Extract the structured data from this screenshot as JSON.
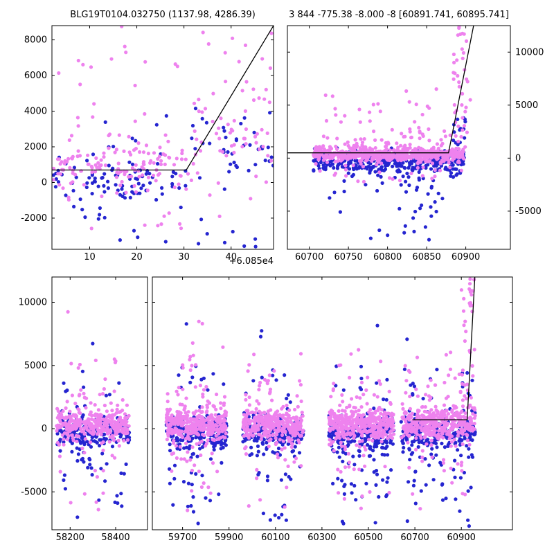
{
  "titles": {
    "left": "BLG19T0104.032750 (1137.98, 4286.39)",
    "right": "3 844 -775.38 -8.000 -8 [60891.741, 60895.741]"
  },
  "offset_label": "+6.085e4",
  "style": {
    "background": "#ffffff",
    "frame_color": "#000000",
    "text_color": "#000000",
    "line_color": "#000000",
    "violet": "#ee82ee",
    "blue": "#2525d0",
    "marker_radius": 2.6,
    "tick_length": 4,
    "font_size": 13,
    "seed": 424243
  },
  "chart_data": [
    {
      "id": "top-left",
      "type": "scatter",
      "title": "BLG19T0104.032750 (1137.98, 4286.39)",
      "rect": {
        "l": 75,
        "t": 37,
        "r": 395,
        "b": 360
      },
      "x": {
        "min": 2,
        "max": 49,
        "ticks": [
          10,
          20,
          30,
          40
        ],
        "show_labels": true,
        "offset": "+6.085e4"
      },
      "y": {
        "min": -3750,
        "max": 8800,
        "ticks": [
          -2000,
          0,
          2000,
          4000,
          6000,
          8000
        ],
        "label_side": "left"
      },
      "model_line": [
        [
          2,
          700
        ],
        [
          30.5,
          700
        ],
        [
          49,
          8800
        ]
      ],
      "series": [
        {
          "name": "blue",
          "blobs": [
            [
              2,
              31,
              100,
              550,
              85,
              "n"
            ],
            [
              31,
              49,
              1900,
              1100,
              40,
              "n"
            ],
            [
              5,
              30,
              -3500,
              -800,
              12,
              "u"
            ],
            [
              31,
              46,
              -3600,
              -1000,
              8,
              "u"
            ],
            [
              10,
              30,
              1500,
              3800,
              8,
              "u"
            ]
          ]
        },
        {
          "name": "violet",
          "blobs": [
            [
              2,
              31,
              850,
              650,
              130,
              "n"
            ],
            [
              31,
              49,
              2300,
              1500,
              55,
              "n"
            ],
            [
              3,
              30,
              2500,
              7800,
              22,
              "u"
            ],
            [
              33,
              49,
              4500,
              8900,
              14,
              "u"
            ],
            [
              14,
              18,
              8400,
              8800,
              1,
              "u"
            ],
            [
              4,
              30,
              -2600,
              -500,
              10,
              "u"
            ]
          ]
        }
      ]
    },
    {
      "id": "top-right",
      "type": "scatter",
      "title": "3 844 -775.38 -8.000 -8 [60891.741, 60895.741]",
      "rect": {
        "l": 415,
        "t": 37,
        "r": 737,
        "b": 360
      },
      "x": {
        "min": 60672,
        "max": 60957,
        "ticks": [
          60700,
          60750,
          60800,
          60850,
          60900
        ],
        "show_labels": true
      },
      "y": {
        "min": -8600,
        "max": 12500,
        "ticks": [
          -5000,
          0,
          5000,
          10000
        ],
        "label_side": "right"
      },
      "model_line": [
        [
          60672,
          500
        ],
        [
          60878,
          500
        ],
        [
          60910,
          12500
        ]
      ],
      "series": [
        {
          "name": "blue",
          "blobs": [
            [
              60705,
              60898,
              -350,
              550,
              330,
              "n"
            ],
            [
              60715,
              60890,
              -5200,
              -900,
              45,
              "u"
            ],
            [
              60760,
              60870,
              -7800,
              -4500,
              12,
              "u"
            ],
            [
              60884,
              60902,
              300,
              3900,
              18,
              "u"
            ]
          ]
        },
        {
          "name": "violet",
          "blobs": [
            [
              60705,
              60898,
              350,
              300,
              520,
              "n"
            ],
            [
              60705,
              60898,
              600,
              900,
              120,
              "n"
            ],
            [
              60715,
              60870,
              2000,
              6600,
              30,
              "u"
            ],
            [
              60884,
              60906,
              800,
              12400,
              40,
              "u"
            ],
            [
              60715,
              60890,
              -2500,
              -600,
              15,
              "u"
            ]
          ]
        }
      ]
    },
    {
      "id": "bottom-left",
      "type": "scatter",
      "title": "",
      "rect": {
        "l": 75,
        "t": 400,
        "r": 213,
        "b": 765
      },
      "x": {
        "min": 58120,
        "max": 58540,
        "ticks": [
          58200,
          58400
        ],
        "show_labels": true
      },
      "y": {
        "min": -8000,
        "max": 12000,
        "ticks": [
          -5000,
          0,
          5000,
          10000
        ],
        "label_side": "left"
      },
      "model_line": null,
      "series": [
        {
          "name": "blue",
          "blobs": [
            [
              58140,
              58460,
              -250,
              600,
              200,
              "n"
            ],
            [
              58150,
              58450,
              -4200,
              -900,
              25,
              "u"
            ],
            [
              58170,
              58430,
              -7200,
              -4400,
              8,
              "u"
            ],
            [
              58150,
              58450,
              1200,
              4600,
              10,
              "u"
            ],
            [
              58280,
              58310,
              6400,
              6800,
              1,
              "u"
            ]
          ]
        },
        {
          "name": "violet",
          "blobs": [
            [
              58140,
              58460,
              300,
              550,
              260,
              "n"
            ],
            [
              58140,
              58460,
              400,
              1200,
              60,
              "n"
            ],
            [
              58150,
              58450,
              2200,
              5500,
              16,
              "u"
            ],
            [
              58190,
              58215,
              8800,
              9400,
              1,
              "u"
            ],
            [
              58150,
              58450,
              -3500,
              -900,
              14,
              "u"
            ],
            [
              58180,
              58420,
              -6500,
              -3800,
              6,
              "u"
            ]
          ]
        }
      ]
    },
    {
      "id": "bottom-right",
      "type": "scatter",
      "title": "",
      "rect": {
        "l": 220,
        "t": 400,
        "r": 740,
        "b": 765
      },
      "x": {
        "min": 59570,
        "max": 61120,
        "ticks": [
          59700,
          59900,
          60100,
          60300,
          60500,
          60700,
          60900
        ],
        "show_labels": true
      },
      "y": {
        "min": -8000,
        "max": 12000,
        "ticks": [
          -5000,
          0,
          5000,
          10000
        ],
        "label_side": "none"
      },
      "model_line": [
        [
          60690,
          700
        ],
        [
          60925,
          700
        ],
        [
          60958,
          12000
        ]
      ],
      "series": [
        {
          "name": "blue",
          "blobs": [
            [
              59630,
              59890,
              -250,
              650,
              200,
              "n"
            ],
            [
              59640,
              59880,
              -4500,
              -1000,
              28,
              "u"
            ],
            [
              59650,
              59870,
              -7600,
              -4600,
              9,
              "u"
            ],
            [
              59640,
              59880,
              1500,
              5000,
              12,
              "u"
            ],
            [
              59705,
              59722,
              8200,
              8500,
              1,
              "u"
            ],
            [
              59960,
              60220,
              -250,
              650,
              200,
              "n"
            ],
            [
              59970,
              60210,
              -4300,
              -1000,
              26,
              "u"
            ],
            [
              59980,
              60200,
              -7500,
              -4500,
              8,
              "u"
            ],
            [
              59970,
              60210,
              1400,
              4800,
              10,
              "u"
            ],
            [
              60030,
              60060,
              7000,
              8300,
              2,
              "u"
            ],
            [
              60330,
              60610,
              -300,
              700,
              230,
              "n"
            ],
            [
              60340,
              60600,
              -4600,
              -1000,
              32,
              "u"
            ],
            [
              60350,
              60590,
              -7800,
              -4700,
              10,
              "u"
            ],
            [
              60340,
              60600,
              1500,
              5200,
              12,
              "u"
            ],
            [
              60538,
              60560,
              8100,
              8400,
              1,
              "u"
            ],
            [
              60640,
              60960,
              -300,
              700,
              220,
              "n"
            ],
            [
              60650,
              60950,
              -4700,
              -1100,
              30,
              "u"
            ],
            [
              60660,
              60940,
              -7800,
              -4800,
              10,
              "u"
            ],
            [
              60650,
              60940,
              1500,
              5200,
              10,
              "u"
            ],
            [
              60652,
              60680,
              6800,
              7400,
              1,
              "u"
            ],
            [
              60895,
              60950,
              500,
              4500,
              10,
              "u"
            ]
          ]
        },
        {
          "name": "violet",
          "blobs": [
            [
              59630,
              59890,
              350,
              600,
              280,
              "n"
            ],
            [
              59630,
              59890,
              500,
              1400,
              70,
              "n"
            ],
            [
              59640,
              59880,
              2500,
              6800,
              18,
              "u"
            ],
            [
              59770,
              59800,
              7800,
              8600,
              2,
              "u"
            ],
            [
              59640,
              59880,
              -3600,
              -900,
              15,
              "u"
            ],
            [
              59650,
              59870,
              -6800,
              -3900,
              6,
              "u"
            ],
            [
              59960,
              60220,
              300,
              550,
              280,
              "n"
            ],
            [
              59960,
              60220,
              450,
              1300,
              65,
              "n"
            ],
            [
              59970,
              60210,
              2300,
              6200,
              16,
              "u"
            ],
            [
              59970,
              60210,
              -3400,
              -800,
              12,
              "u"
            ],
            [
              59980,
              60200,
              -6200,
              -3700,
              5,
              "u"
            ],
            [
              60330,
              60610,
              300,
              550,
              320,
              "n"
            ],
            [
              60330,
              60610,
              450,
              1300,
              75,
              "n"
            ],
            [
              60340,
              60600,
              2300,
              6400,
              18,
              "u"
            ],
            [
              60340,
              60600,
              -3500,
              -900,
              14,
              "u"
            ],
            [
              60350,
              60590,
              -6700,
              -3900,
              6,
              "u"
            ],
            [
              60640,
              60960,
              350,
              600,
              300,
              "n"
            ],
            [
              60640,
              60960,
              500,
              1400,
              70,
              "n"
            ],
            [
              60650,
              60950,
              2400,
              7000,
              22,
              "u"
            ],
            [
              60650,
              60950,
              -3500,
              -900,
              12,
              "u"
            ],
            [
              60660,
              60940,
              -6500,
              -3800,
              5,
              "u"
            ],
            [
              60895,
              60958,
              900,
              11900,
              30,
              "u"
            ],
            [
              60928,
              60958,
              9000,
              11900,
              8,
              "u"
            ]
          ]
        }
      ]
    }
  ]
}
